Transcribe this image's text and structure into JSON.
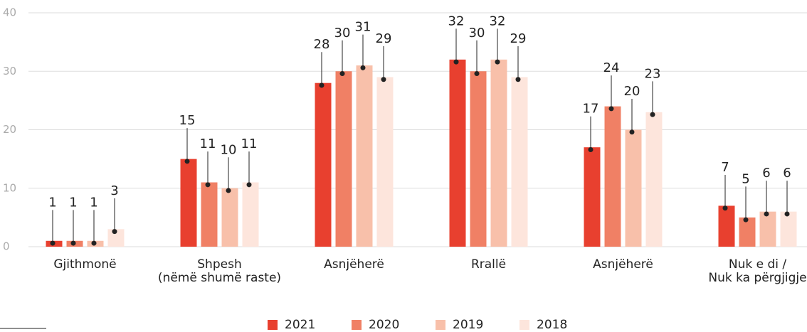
{
  "chart_data": {
    "type": "bar",
    "categories": [
      "Gjithmonë",
      "Shpesh\n(nëmë shumë raste)",
      "Asnjëherë",
      "Rrallë",
      "Asnjëherë",
      "Nuk e di /\nNuk ka përgjigje"
    ],
    "series": [
      {
        "name": "2021",
        "color": "#e8402f",
        "values": [
          1,
          15,
          28,
          32,
          17,
          7
        ]
      },
      {
        "name": "2020",
        "color": "#f08065",
        "values": [
          1,
          11,
          30,
          30,
          24,
          5
        ]
      },
      {
        "name": "2019",
        "color": "#f8c0aa",
        "values": [
          1,
          10,
          31,
          32,
          20,
          6
        ]
      },
      {
        "name": "2018",
        "color": "#fde5dc",
        "values": [
          3,
          11,
          29,
          29,
          23,
          6
        ]
      }
    ],
    "ylim": [
      0,
      40
    ],
    "yticks": [
      0,
      10,
      20,
      30,
      40
    ],
    "grid": true,
    "legend": "bottom"
  }
}
